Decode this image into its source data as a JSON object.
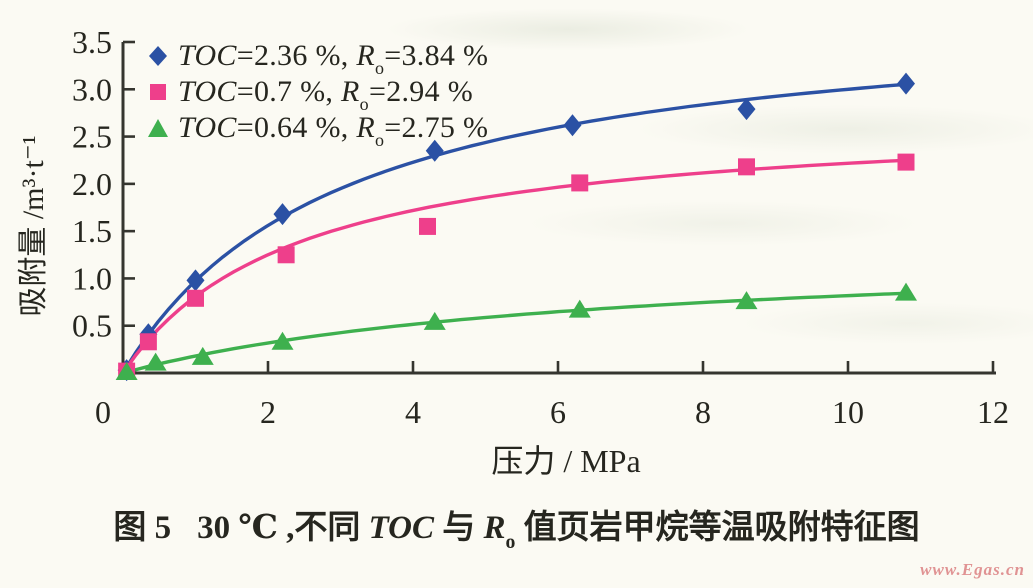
{
  "page": {
    "watermark": "www.Egas.cn",
    "watermark_color": "#e09393",
    "background_color": "#fbfaf3",
    "text_color": "#26261f"
  },
  "caption": {
    "fig_label": "图 5",
    "pre": "30 ℃ ,不同 ",
    "toc": "TOC",
    "conj": " 与 ",
    "r": "R",
    "r_sub": "o",
    "post": " 值页岩甲烷等温吸附特征图"
  },
  "chart_data": {
    "type": "line",
    "markers": true,
    "title": "",
    "xlabel": "压力 / MPa",
    "ylabel": "吸附量 /m³·t⁻¹",
    "xlim": [
      0,
      12
    ],
    "ylim": [
      0,
      3.5
    ],
    "x_ticks": [
      0,
      2,
      4,
      6,
      8,
      10,
      12
    ],
    "y_ticks": [
      0.5,
      1.0,
      1.5,
      2.0,
      2.5,
      3.0,
      3.5
    ],
    "grid": false,
    "legend_position": "top-left",
    "axis_color": "#35352f",
    "series": [
      {
        "name": "TOC=2.36 %, Ro=3.84 %",
        "marker": "diamond",
        "color": "#2b51a4",
        "legend": {
          "var1": "TOC",
          "eq1": "=2.36 %, ",
          "var2": "R",
          "sub2": "o",
          "eq2": "=3.84 %"
        },
        "x": [
          0.05,
          0.35,
          1.0,
          2.2,
          4.3,
          6.2,
          8.6,
          10.8
        ],
        "y": [
          0.03,
          0.41,
          0.98,
          1.68,
          2.35,
          2.62,
          2.79,
          3.06
        ],
        "fit": {
          "vl": 3.9,
          "pl": 3.0
        }
      },
      {
        "name": "TOC=0.7 %, Ro=2.94 %",
        "marker": "square",
        "color": "#ee3f8b",
        "legend": {
          "var1": "TOC",
          "eq1": "=0.7 %, ",
          "var2": "R",
          "sub2": "o",
          "eq2": "=2.94 %"
        },
        "x": [
          0.05,
          0.35,
          1.0,
          2.25,
          4.2,
          6.3,
          8.6,
          10.8
        ],
        "y": [
          0.02,
          0.33,
          0.79,
          1.25,
          1.55,
          2.01,
          2.18,
          2.23
        ],
        "fit": {
          "vl": 2.75,
          "pl": 2.4
        }
      },
      {
        "name": "TOC=0.64 %, Ro=2.75 %",
        "marker": "triangle",
        "color": "#3eb04e",
        "legend": {
          "var1": "TOC",
          "eq1": "=0.64 %, ",
          "var2": "R",
          "sub2": "o",
          "eq2": "=2.75 %"
        },
        "x": [
          0.05,
          0.45,
          1.1,
          2.2,
          4.3,
          6.3,
          8.6,
          10.8
        ],
        "y": [
          0.01,
          0.11,
          0.17,
          0.33,
          0.54,
          0.67,
          0.76,
          0.85
        ],
        "fit": {
          "vl": 1.35,
          "pl": 6.5
        }
      }
    ]
  }
}
